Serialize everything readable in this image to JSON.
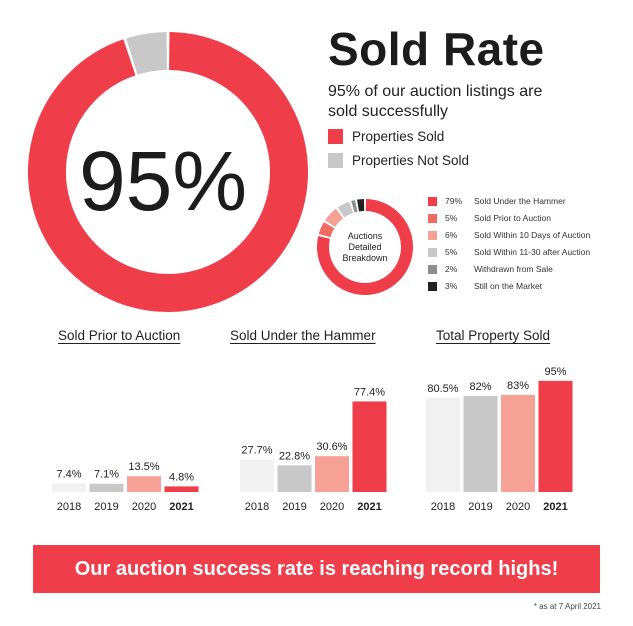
{
  "header": {
    "title": "Sold Rate",
    "subtitle": "95% of our auction listings are sold successfully",
    "legend": [
      {
        "label": "Properties Sold",
        "color": "#ef3e4a"
      },
      {
        "label": "Properties Not Sold",
        "color": "#c8c8c8"
      }
    ]
  },
  "colors": {
    "red": "#ef3e4a",
    "grey": "#c8c8c8",
    "pale": "#f1f1f1",
    "salmon": "#f7a095",
    "dark": "#222222"
  },
  "breakdown": {
    "center_label": [
      "Auctions",
      "Detailed",
      "Breakdown"
    ],
    "items": [
      {
        "pct": "79%",
        "label": "Sold Under the Hammer",
        "value": 79,
        "color": "#ef3e4a"
      },
      {
        "pct": "5%",
        "label": "Sold Prior to Auction",
        "value": 5,
        "color": "#f06a62"
      },
      {
        "pct": "6%",
        "label": "Sold Within 10 Days of Auction",
        "value": 6,
        "color": "#f7a095"
      },
      {
        "pct": "5%",
        "label": "Sold Within 11-30 after Auction",
        "value": 5,
        "color": "#c8c8c8"
      },
      {
        "pct": "2%",
        "label": "Withdrawn from Sale",
        "value": 2,
        "color": "#8e8e8e"
      },
      {
        "pct": "3%",
        "label": "Still on the Market",
        "value": 3,
        "color": "#222222"
      }
    ]
  },
  "chart_data": [
    {
      "type": "pie",
      "title": "",
      "center_text": "95%",
      "slices": [
        {
          "name": "Properties Sold",
          "value": 95,
          "color": "#ef3e4a"
        },
        {
          "name": "Properties Not Sold",
          "value": 5,
          "color": "#c8c8c8"
        }
      ]
    },
    {
      "type": "pie",
      "title": "",
      "center_text": "Auctions Detailed Breakdown",
      "slices": [
        {
          "name": "Sold Under the Hammer",
          "value": 79
        },
        {
          "name": "Sold Prior to Auction",
          "value": 5
        },
        {
          "name": "Sold Within 10 Days of Auction",
          "value": 6
        },
        {
          "name": "Sold Within 11-30 after Auction",
          "value": 5
        },
        {
          "name": "Withdrawn from Sale",
          "value": 2
        },
        {
          "name": "Still on the Market",
          "value": 3
        }
      ]
    },
    {
      "type": "bar",
      "title": "Sold Prior to Auction",
      "categories": [
        "2018",
        "2019",
        "2020",
        "2021"
      ],
      "values": [
        7.4,
        7.1,
        13.5,
        4.8
      ],
      "labels": [
        "7.4%",
        "7.1%",
        "13.5%",
        "4.8%"
      ],
      "bar_colors": [
        "#f1f1f1",
        "#c8c8c8",
        "#f7a095",
        "#ef3e4a"
      ],
      "bold_category": "2021"
    },
    {
      "type": "bar",
      "title": "Sold Under the Hammer",
      "categories": [
        "2018",
        "2019",
        "2020",
        "2021"
      ],
      "values": [
        27.7,
        22.8,
        30.6,
        77.4
      ],
      "labels": [
        "27.7%",
        "22.8%",
        "30.6%",
        "77.4%"
      ],
      "bar_colors": [
        "#f1f1f1",
        "#c8c8c8",
        "#f7a095",
        "#ef3e4a"
      ],
      "bold_category": "2021"
    },
    {
      "type": "bar",
      "title": "Total Property Sold",
      "categories": [
        "2018",
        "2019",
        "2020",
        "2021"
      ],
      "values": [
        80.5,
        82,
        83,
        95
      ],
      "labels": [
        "80.5%",
        "82%",
        "83%",
        "95%"
      ],
      "bar_colors": [
        "#f1f1f1",
        "#c8c8c8",
        "#f7a095",
        "#ef3e4a"
      ],
      "bold_category": "2021"
    }
  ],
  "banner": {
    "text": "Our auction success rate is reaching record highs!"
  },
  "footnote": "* as at 7 April 2021"
}
